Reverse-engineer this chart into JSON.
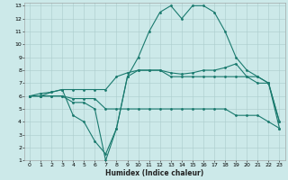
{
  "title": "",
  "xlabel": "Humidex (Indice chaleur)",
  "ylabel": "",
  "bg_color": "#cce9e9",
  "line_color": "#1a7a6e",
  "grid_color": "#aacccc",
  "xlim": [
    -0.5,
    23.5
  ],
  "ylim": [
    1,
    13.2
  ],
  "xticks": [
    0,
    1,
    2,
    3,
    4,
    5,
    6,
    7,
    8,
    9,
    10,
    11,
    12,
    13,
    14,
    15,
    16,
    17,
    18,
    19,
    20,
    21,
    22,
    23
  ],
  "yticks": [
    1,
    2,
    3,
    4,
    5,
    6,
    7,
    8,
    9,
    10,
    11,
    12,
    13
  ],
  "line1": {
    "x": [
      0,
      1,
      2,
      3,
      4,
      5,
      6,
      7,
      8,
      9,
      10,
      11,
      12,
      13,
      14,
      15,
      16,
      17,
      18,
      19,
      20,
      21,
      22,
      23
    ],
    "y": [
      6,
      6,
      6,
      6,
      5.5,
      5.5,
      5,
      1,
      3.5,
      7.5,
      9,
      11,
      12.5,
      13,
      12,
      13,
      13,
      12.5,
      11,
      9,
      8,
      7.5,
      7,
      3.5
    ]
  },
  "line2": {
    "x": [
      0,
      1,
      2,
      3,
      4,
      5,
      6,
      7,
      8,
      9,
      10,
      11,
      12,
      13,
      14,
      15,
      16,
      17,
      18,
      19,
      20,
      21,
      22,
      23
    ],
    "y": [
      6,
      6.2,
      6.3,
      6.5,
      6.5,
      6.5,
      6.5,
      6.5,
      7.5,
      7.8,
      8,
      8,
      8,
      7.8,
      7.7,
      7.8,
      8,
      8,
      8.2,
      8.5,
      7.5,
      7.5,
      7,
      4
    ]
  },
  "line3": {
    "x": [
      0,
      1,
      2,
      3,
      4,
      5,
      6,
      7,
      8,
      9,
      10,
      11,
      12,
      13,
      14,
      15,
      16,
      17,
      18,
      19,
      20,
      21,
      22,
      23
    ],
    "y": [
      6,
      6,
      6,
      6,
      5.8,
      5.8,
      5.8,
      5,
      5,
      5,
      5,
      5,
      5,
      5,
      5,
      5,
      5,
      5,
      5,
      4.5,
      4.5,
      4.5,
      4,
      3.5
    ]
  },
  "line4": {
    "x": [
      0,
      1,
      2,
      3,
      4,
      5,
      6,
      7,
      8,
      9,
      10,
      11,
      12,
      13,
      14,
      15,
      16,
      17,
      18,
      19,
      20,
      21,
      22,
      23
    ],
    "y": [
      6,
      6,
      6.3,
      6.5,
      4.5,
      4,
      2.5,
      1.5,
      3.5,
      7.5,
      8,
      8,
      8,
      7.5,
      7.5,
      7.5,
      7.5,
      7.5,
      7.5,
      7.5,
      7.5,
      7,
      7,
      4
    ]
  },
  "xlabel_fontsize": 5.5,
  "tick_fontsize": 4.5,
  "linewidth": 0.8,
  "markersize": 2.0
}
